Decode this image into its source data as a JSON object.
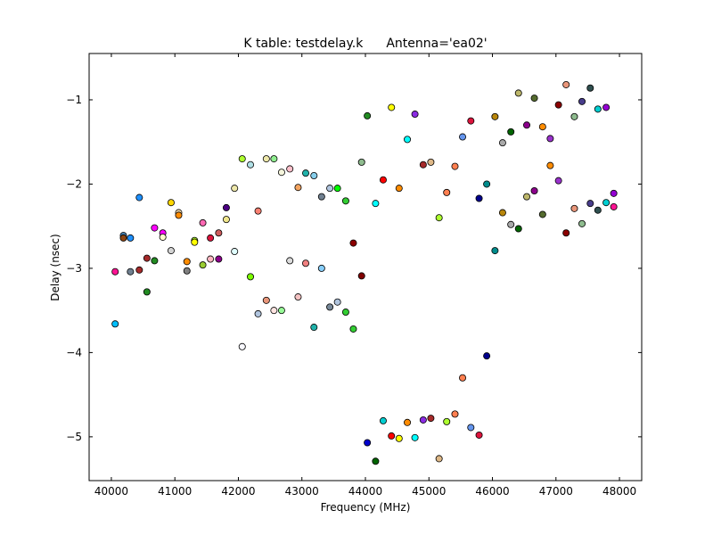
{
  "chart_data": {
    "type": "scatter",
    "title": "K table: testdelay.k",
    "subtitle": "Antenna='ea02'",
    "xlabel": "Frequency (MHz)",
    "ylabel": "Delay (nsec)",
    "xlim": [
      39650,
      48350
    ],
    "ylim": [
      -5.52,
      -0.45
    ],
    "xticks": [
      40000,
      41000,
      42000,
      43000,
      44000,
      45000,
      46000,
      47000,
      48000
    ],
    "xtick_labels": [
      "40000",
      "41000",
      "42000",
      "43000",
      "44000",
      "45000",
      "46000",
      "47000",
      "48000"
    ],
    "yticks": [
      -5,
      -4,
      -3,
      -2,
      -1
    ],
    "ytick_labels": [
      "−5",
      "−4",
      "−3",
      "−2",
      "−1"
    ],
    "grid": false,
    "legend": "none",
    "marker": "circle",
    "marker_edge_color": "#000000",
    "points": [
      {
        "x": 40060,
        "y": -3.04,
        "color": "#ff1493"
      },
      {
        "x": 40060,
        "y": -3.66,
        "color": "#00bfff"
      },
      {
        "x": 40190,
        "y": -2.61,
        "color": "#4682b4"
      },
      {
        "x": 40190,
        "y": -2.64,
        "color": "#8b4513"
      },
      {
        "x": 40300,
        "y": -2.64,
        "color": "#1e90ff"
      },
      {
        "x": 40300,
        "y": -3.04,
        "color": "#708090"
      },
      {
        "x": 40440,
        "y": -2.16,
        "color": "#1e90ff"
      },
      {
        "x": 40440,
        "y": -3.02,
        "color": "#a52a2a"
      },
      {
        "x": 40560,
        "y": -2.88,
        "color": "#a52a2a"
      },
      {
        "x": 40560,
        "y": -3.28,
        "color": "#228b22"
      },
      {
        "x": 40680,
        "y": -2.52,
        "color": "#ff00ff"
      },
      {
        "x": 40680,
        "y": -2.91,
        "color": "#228b22"
      },
      {
        "x": 40810,
        "y": -2.58,
        "color": "#ff00ff"
      },
      {
        "x": 40810,
        "y": -2.63,
        "color": "#fffacd"
      },
      {
        "x": 40940,
        "y": -2.22,
        "color": "#ffd700"
      },
      {
        "x": 40940,
        "y": -2.79,
        "color": "#d3d3d3"
      },
      {
        "x": 41060,
        "y": -2.34,
        "color": "#f5deb3"
      },
      {
        "x": 41060,
        "y": -2.37,
        "color": "#ff8c00"
      },
      {
        "x": 41190,
        "y": -2.92,
        "color": "#ff8c00"
      },
      {
        "x": 41190,
        "y": -3.03,
        "color": "#808080"
      },
      {
        "x": 41310,
        "y": -2.67,
        "color": "#adff2f"
      },
      {
        "x": 41310,
        "y": -2.69,
        "color": "#ffff00"
      },
      {
        "x": 41440,
        "y": -2.46,
        "color": "#ff69b4"
      },
      {
        "x": 41440,
        "y": -2.96,
        "color": "#9acd32"
      },
      {
        "x": 41560,
        "y": -2.64,
        "color": "#dc143c"
      },
      {
        "x": 41560,
        "y": -2.89,
        "color": "#ffb6c1"
      },
      {
        "x": 41690,
        "y": -2.58,
        "color": "#cd5c5c"
      },
      {
        "x": 41690,
        "y": -2.89,
        "color": "#8b008b"
      },
      {
        "x": 41810,
        "y": -2.28,
        "color": "#4b0082"
      },
      {
        "x": 41810,
        "y": -2.42,
        "color": "#f0e68c"
      },
      {
        "x": 41940,
        "y": -2.05,
        "color": "#eee8aa"
      },
      {
        "x": 41940,
        "y": -2.8,
        "color": "#e0ffff"
      },
      {
        "x": 42060,
        "y": -1.7,
        "color": "#adff2f"
      },
      {
        "x": 42060,
        "y": -3.93,
        "color": "#f8f8ff"
      },
      {
        "x": 42190,
        "y": -1.77,
        "color": "#b0e0e6"
      },
      {
        "x": 42190,
        "y": -3.1,
        "color": "#7cfc00"
      },
      {
        "x": 42310,
        "y": -2.32,
        "color": "#fa8072"
      },
      {
        "x": 42310,
        "y": -3.54,
        "color": "#b0c4de"
      },
      {
        "x": 42440,
        "y": -1.7,
        "color": "#eee8aa"
      },
      {
        "x": 42440,
        "y": -3.38,
        "color": "#e9967a"
      },
      {
        "x": 42560,
        "y": -1.7,
        "color": "#90ee90"
      },
      {
        "x": 42560,
        "y": -3.5,
        "color": "#ffe4e1"
      },
      {
        "x": 42680,
        "y": -1.86,
        "color": "#f5f5dc"
      },
      {
        "x": 42680,
        "y": -3.5,
        "color": "#98fb98"
      },
      {
        "x": 42810,
        "y": -1.82,
        "color": "#ffc0cb"
      },
      {
        "x": 42810,
        "y": -2.91,
        "color": "#dcdcdc"
      },
      {
        "x": 42940,
        "y": -2.04,
        "color": "#f4a460"
      },
      {
        "x": 42940,
        "y": -3.34,
        "color": "#f4c2c2"
      },
      {
        "x": 43060,
        "y": -1.87,
        "color": "#20b2aa"
      },
      {
        "x": 43060,
        "y": -2.94,
        "color": "#f08080"
      },
      {
        "x": 43190,
        "y": -1.9,
        "color": "#87ceeb"
      },
      {
        "x": 43190,
        "y": -3.7,
        "color": "#20b2aa"
      },
      {
        "x": 43310,
        "y": -2.15,
        "color": "#708090"
      },
      {
        "x": 43310,
        "y": -3.0,
        "color": "#87cefa"
      },
      {
        "x": 43440,
        "y": -2.05,
        "color": "#b0c4de"
      },
      {
        "x": 43440,
        "y": -3.46,
        "color": "#778899"
      },
      {
        "x": 43560,
        "y": -2.05,
        "color": "#00ff00"
      },
      {
        "x": 43560,
        "y": -3.4,
        "color": "#b0c4de"
      },
      {
        "x": 43690,
        "y": -2.2,
        "color": "#32cd32"
      },
      {
        "x": 43690,
        "y": -3.52,
        "color": "#32cd32"
      },
      {
        "x": 43810,
        "y": -2.7,
        "color": "#8b0000"
      },
      {
        "x": 43810,
        "y": -3.72,
        "color": "#32cd32"
      },
      {
        "x": 43940,
        "y": -1.74,
        "color": "#8fbc8f"
      },
      {
        "x": 43940,
        "y": -3.09,
        "color": "#800000"
      },
      {
        "x": 44030,
        "y": -1.19,
        "color": "#228b22"
      },
      {
        "x": 44030,
        "y": -5.07,
        "color": "#0000cd"
      },
      {
        "x": 44160,
        "y": -2.23,
        "color": "#00ffff"
      },
      {
        "x": 44160,
        "y": -5.29,
        "color": "#006400"
      },
      {
        "x": 44280,
        "y": -1.95,
        "color": "#ff0000"
      },
      {
        "x": 44280,
        "y": -4.81,
        "color": "#00ced1"
      },
      {
        "x": 44410,
        "y": -1.09,
        "color": "#ffff00"
      },
      {
        "x": 44410,
        "y": -4.99,
        "color": "#ff0000"
      },
      {
        "x": 44530,
        "y": -2.05,
        "color": "#ff8c00"
      },
      {
        "x": 44530,
        "y": -5.02,
        "color": "#ffff00"
      },
      {
        "x": 44660,
        "y": -1.47,
        "color": "#00ffff"
      },
      {
        "x": 44660,
        "y": -4.83,
        "color": "#ff8c00"
      },
      {
        "x": 44780,
        "y": -1.17,
        "color": "#8a2be2"
      },
      {
        "x": 44780,
        "y": -5.01,
        "color": "#00ffff"
      },
      {
        "x": 44910,
        "y": -1.77,
        "color": "#a52a2a"
      },
      {
        "x": 44910,
        "y": -4.8,
        "color": "#8a2be2"
      },
      {
        "x": 45030,
        "y": -1.74,
        "color": "#deb887"
      },
      {
        "x": 45030,
        "y": -4.78,
        "color": "#a52a2a"
      },
      {
        "x": 45160,
        "y": -2.4,
        "color": "#adff2f"
      },
      {
        "x": 45160,
        "y": -5.26,
        "color": "#deb887"
      },
      {
        "x": 45280,
        "y": -2.1,
        "color": "#ff7f50"
      },
      {
        "x": 45280,
        "y": -4.82,
        "color": "#adff2f"
      },
      {
        "x": 45410,
        "y": -1.79,
        "color": "#ff7f50"
      },
      {
        "x": 45410,
        "y": -4.73,
        "color": "#ff7f50"
      },
      {
        "x": 45530,
        "y": -1.44,
        "color": "#6495ed"
      },
      {
        "x": 45530,
        "y": -4.3,
        "color": "#ff7f50"
      },
      {
        "x": 45660,
        "y": -1.25,
        "color": "#dc143c"
      },
      {
        "x": 45660,
        "y": -4.89,
        "color": "#6495ed"
      },
      {
        "x": 45790,
        "y": -2.17,
        "color": "#00008b"
      },
      {
        "x": 45790,
        "y": -4.98,
        "color": "#dc143c"
      },
      {
        "x": 45910,
        "y": -2.0,
        "color": "#008b8b"
      },
      {
        "x": 45910,
        "y": -4.04,
        "color": "#00008b"
      },
      {
        "x": 46040,
        "y": -1.2,
        "color": "#b8860b"
      },
      {
        "x": 46040,
        "y": -2.79,
        "color": "#008b8b"
      },
      {
        "x": 46160,
        "y": -1.51,
        "color": "#a9a9a9"
      },
      {
        "x": 46160,
        "y": -2.34,
        "color": "#b8860b"
      },
      {
        "x": 46290,
        "y": -1.38,
        "color": "#006400"
      },
      {
        "x": 46290,
        "y": -2.48,
        "color": "#a9a9a9"
      },
      {
        "x": 46410,
        "y": -0.92,
        "color": "#bdb76b"
      },
      {
        "x": 46410,
        "y": -2.53,
        "color": "#006400"
      },
      {
        "x": 46540,
        "y": -1.3,
        "color": "#8b008b"
      },
      {
        "x": 46540,
        "y": -2.15,
        "color": "#bdb76b"
      },
      {
        "x": 46660,
        "y": -0.98,
        "color": "#556b2f"
      },
      {
        "x": 46660,
        "y": -2.08,
        "color": "#8b008b"
      },
      {
        "x": 46790,
        "y": -1.32,
        "color": "#ff8c00"
      },
      {
        "x": 46790,
        "y": -2.36,
        "color": "#556b2f"
      },
      {
        "x": 46910,
        "y": -1.46,
        "color": "#9932cc"
      },
      {
        "x": 46910,
        "y": -1.78,
        "color": "#ff8c00"
      },
      {
        "x": 47040,
        "y": -1.06,
        "color": "#8b0000"
      },
      {
        "x": 47040,
        "y": -1.96,
        "color": "#9932cc"
      },
      {
        "x": 47160,
        "y": -0.82,
        "color": "#e9967a"
      },
      {
        "x": 47160,
        "y": -2.58,
        "color": "#8b0000"
      },
      {
        "x": 47290,
        "y": -1.2,
        "color": "#8fbc8f"
      },
      {
        "x": 47290,
        "y": -2.29,
        "color": "#e9967a"
      },
      {
        "x": 47410,
        "y": -1.02,
        "color": "#483d8b"
      },
      {
        "x": 47410,
        "y": -2.47,
        "color": "#8fbc8f"
      },
      {
        "x": 47540,
        "y": -0.86,
        "color": "#2f4f4f"
      },
      {
        "x": 47540,
        "y": -2.23,
        "color": "#483d8b"
      },
      {
        "x": 47660,
        "y": -1.11,
        "color": "#00ced1"
      },
      {
        "x": 47660,
        "y": -2.31,
        "color": "#2f4f4f"
      },
      {
        "x": 47790,
        "y": -1.09,
        "color": "#9400d3"
      },
      {
        "x": 47790,
        "y": -2.22,
        "color": "#00ced1"
      },
      {
        "x": 47910,
        "y": -2.11,
        "color": "#9400d3"
      },
      {
        "x": 47910,
        "y": -2.27,
        "color": "#ff1493"
      }
    ]
  }
}
